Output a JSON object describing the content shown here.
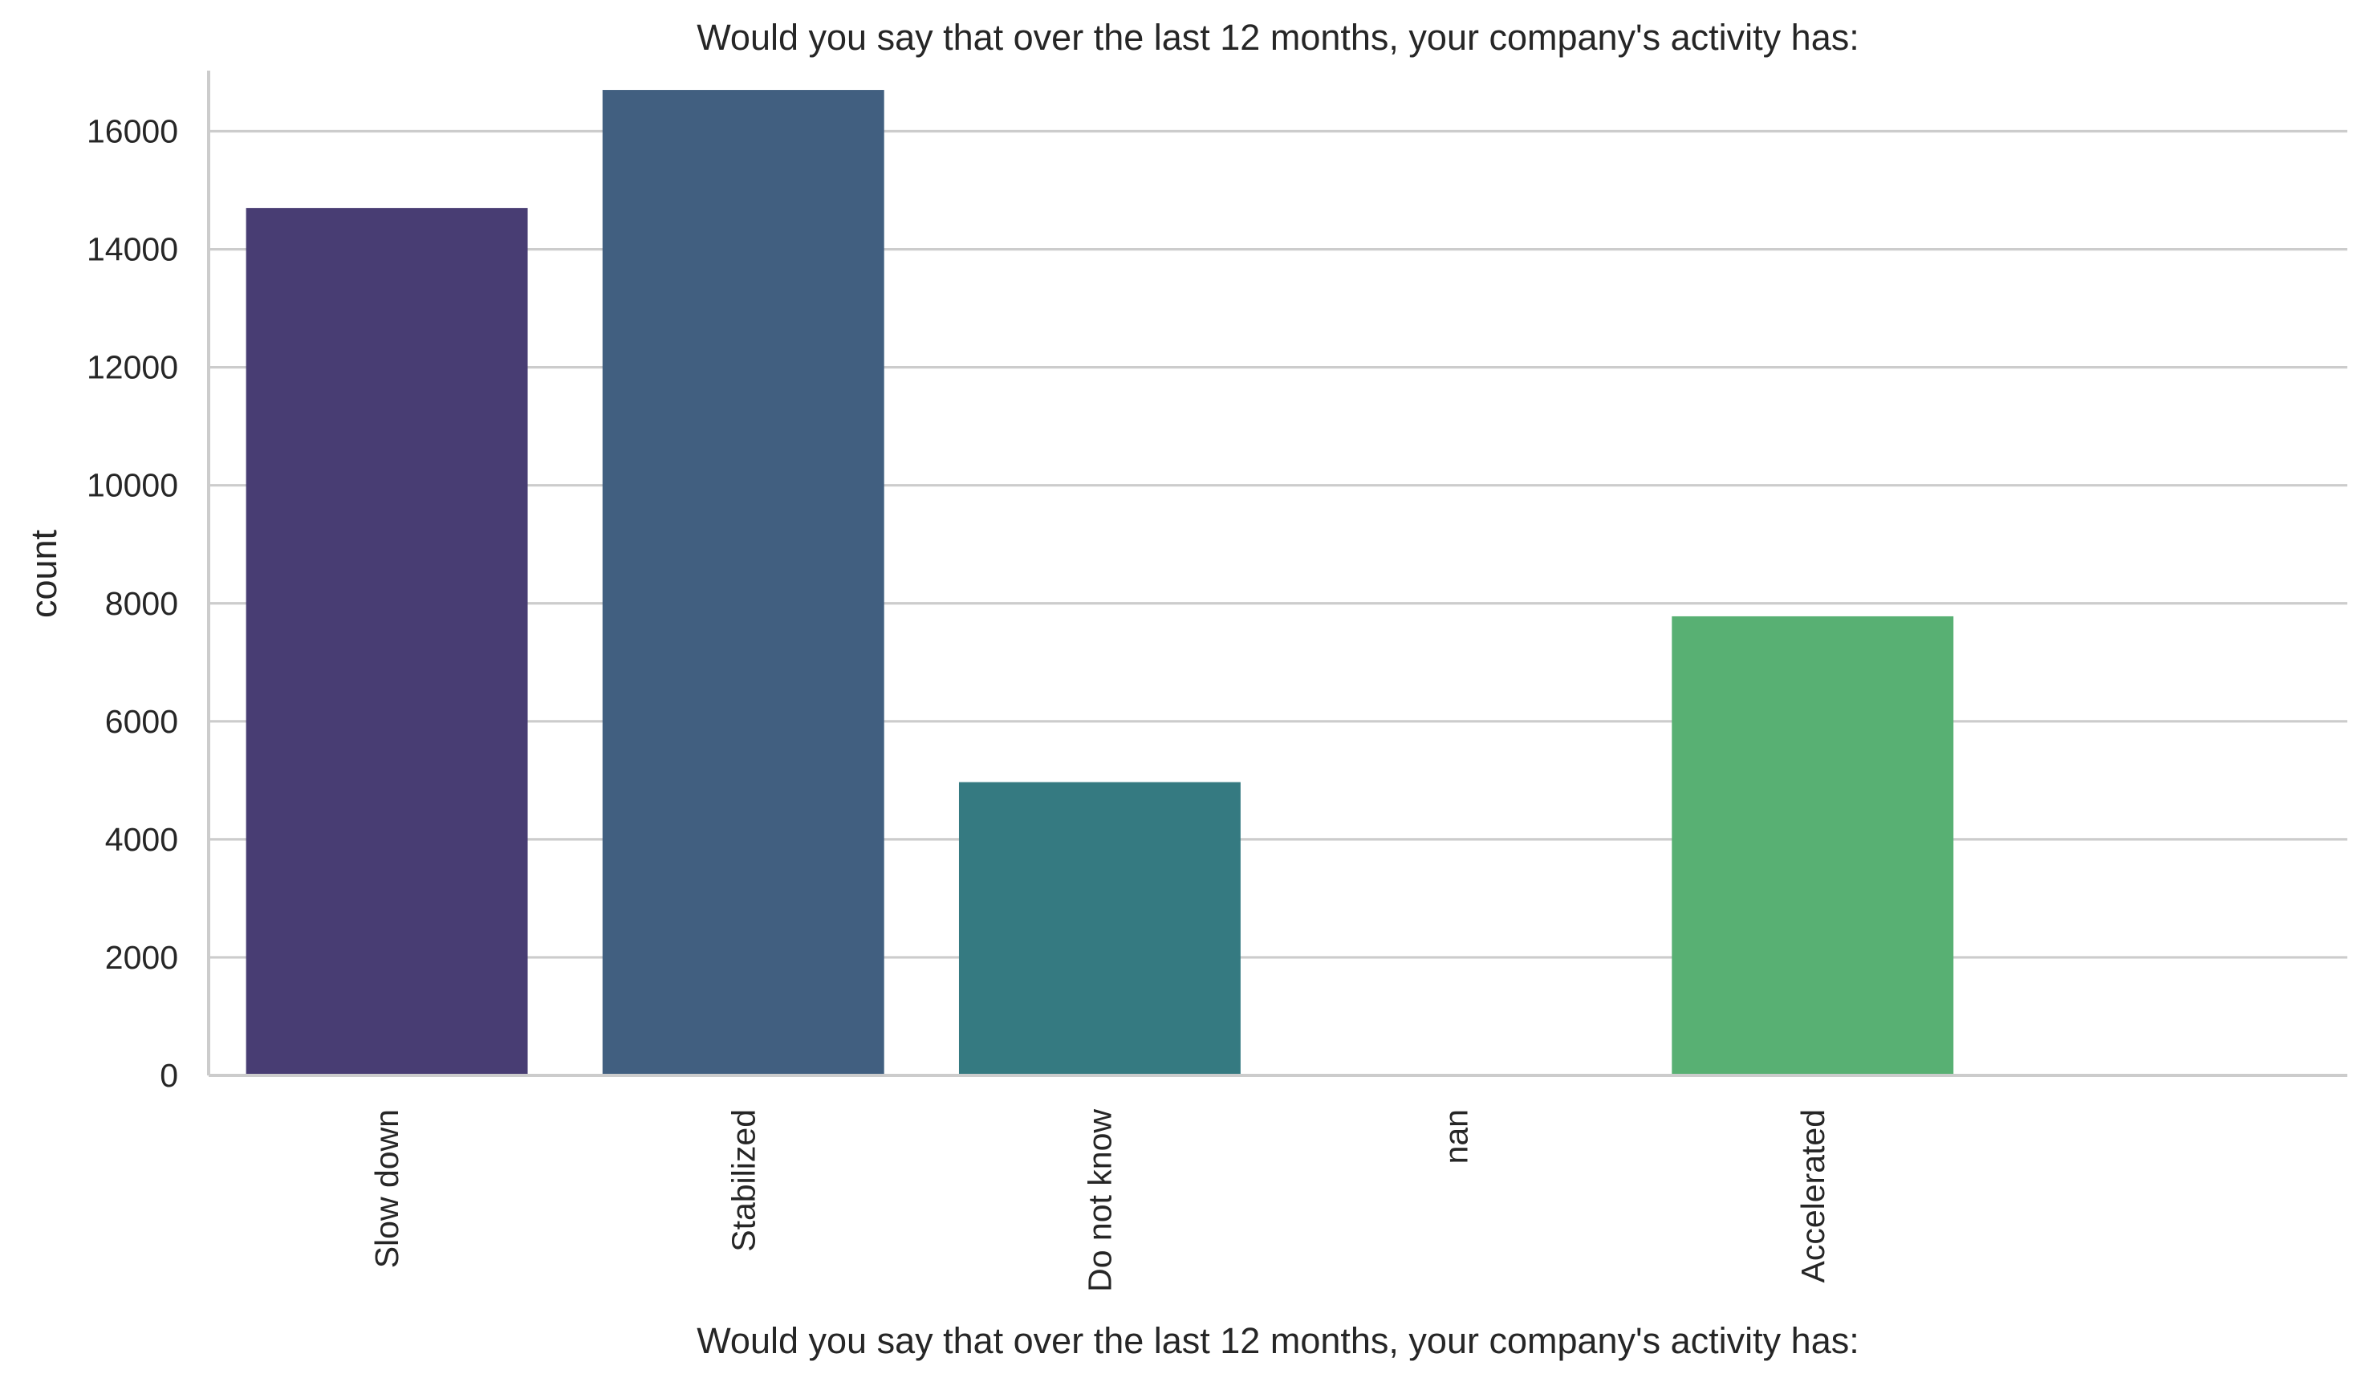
{
  "chart_data": {
    "type": "bar",
    "title": "Would you say that over the last 12 months, your company's activity has:",
    "xlabel": "Would you say that over the last 12 months, your company's activity has:",
    "ylabel": "count",
    "categories": [
      "Slow down",
      "Stabilized",
      "Do not know",
      "nan",
      "Accelerated"
    ],
    "values": [
      14700,
      16700,
      4970,
      0,
      7780
    ],
    "colors": [
      "#483d73",
      "#415f80",
      "#357a81",
      "#2a9a80",
      "#58b073"
    ],
    "ylim": [
      0,
      17000
    ],
    "yticks": [
      0,
      2000,
      4000,
      6000,
      8000,
      10000,
      12000,
      14000,
      16000
    ],
    "grid": "horizontal",
    "legend": "none"
  }
}
